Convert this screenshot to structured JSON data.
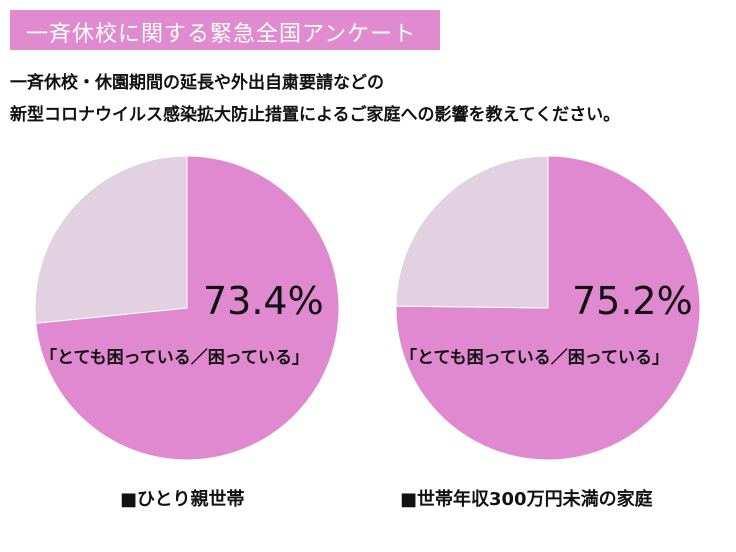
{
  "header": {
    "title": "一斉休校に関する緊急全国アンケート"
  },
  "question": {
    "line1": "一斉休校・休園期間の延長や外出自粛要請などの",
    "line2": "新型コロナウイルス感染拡大防止措置によるご家庭への影響を教えてください。"
  },
  "chart_data": [
    {
      "type": "pie",
      "group": "■ひとり親世帯",
      "slices": [
        {
          "label": "「とても困っている／困っている」",
          "value": 73.4,
          "color": "#e089d0"
        },
        {
          "value": 26.6,
          "color": "#e2d1e0"
        }
      ],
      "value_label": "73.4%"
    },
    {
      "type": "pie",
      "group": "■世帯年収300万円未満の家庭",
      "slices": [
        {
          "label": "「とても困っている／困っている」",
          "value": 75.2,
          "color": "#e089d0"
        },
        {
          "value": 24.8,
          "color": "#e2d1e0"
        }
      ],
      "value_label": "75.2%"
    }
  ]
}
